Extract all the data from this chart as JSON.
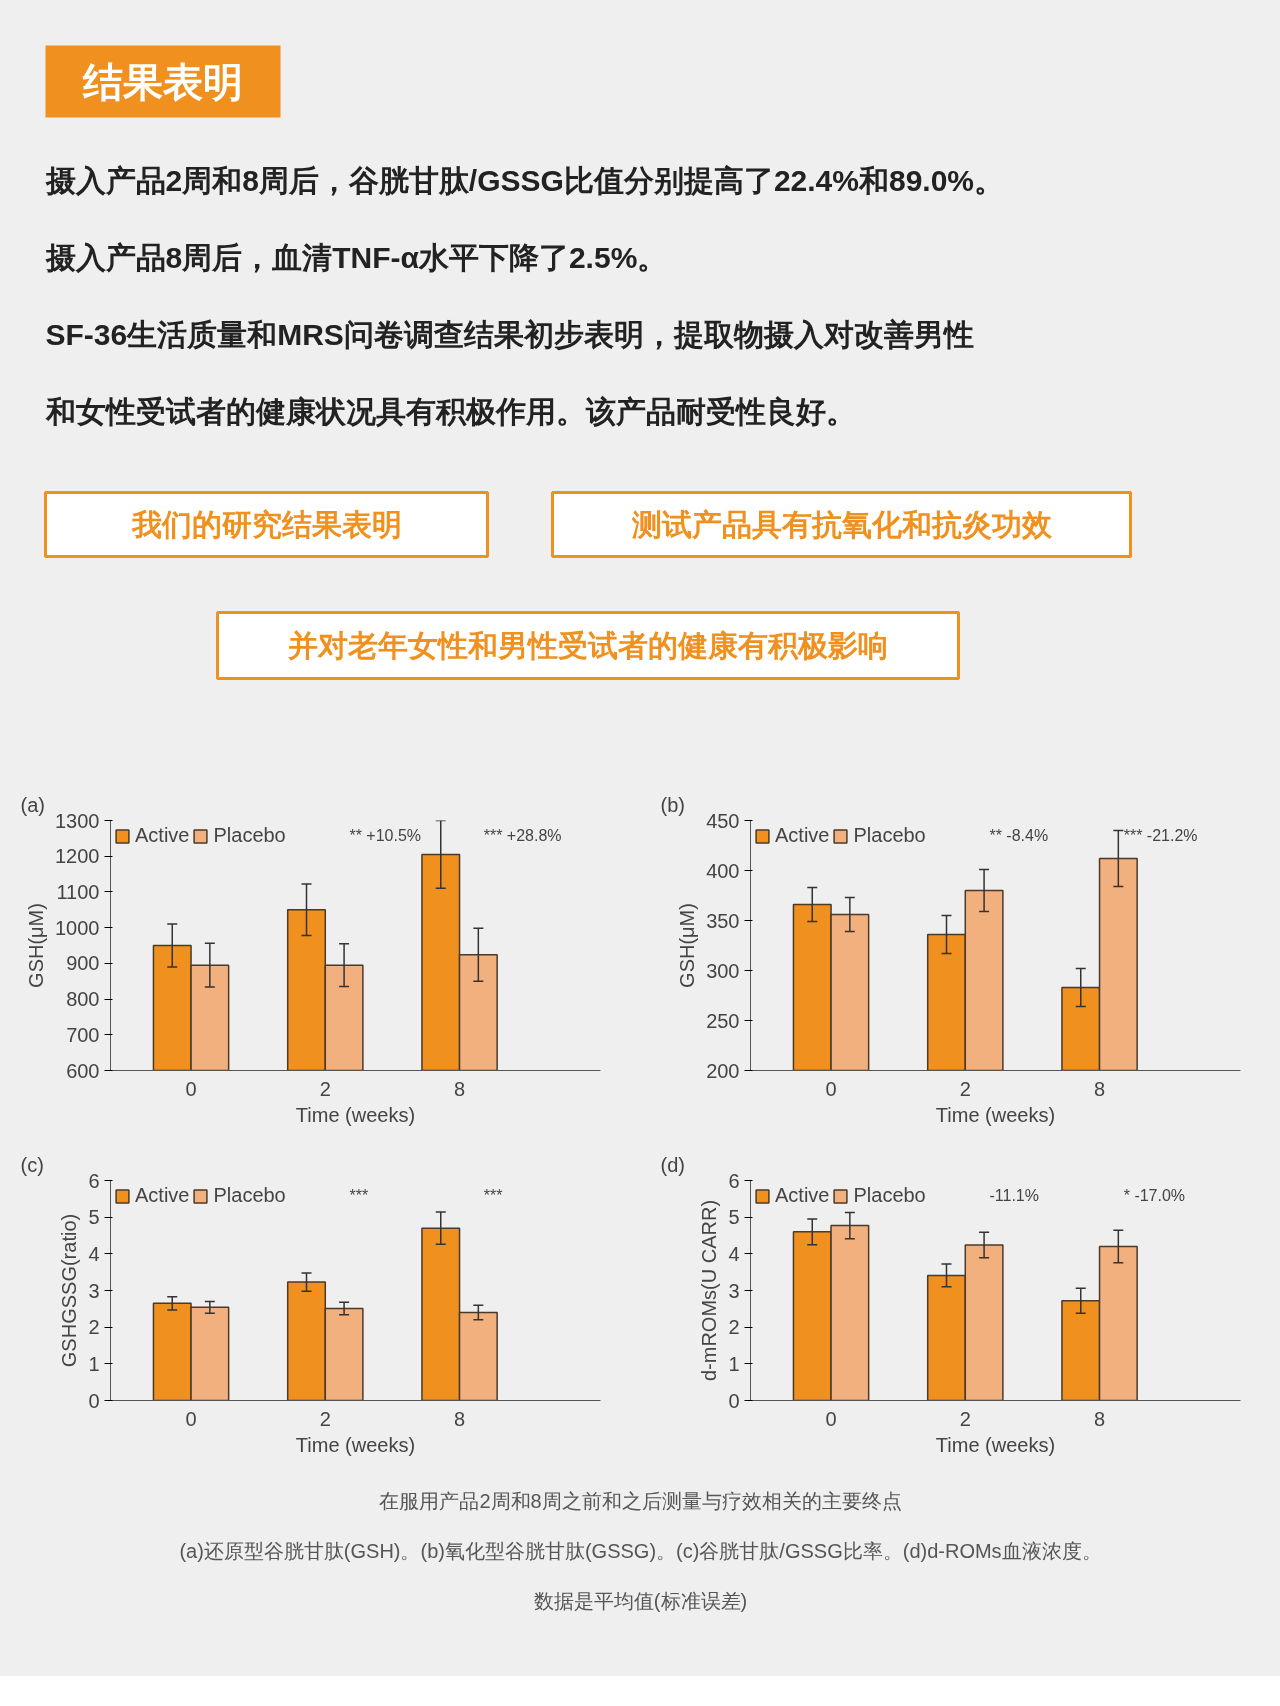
{
  "chart_data": [
    {
      "type": "other",
      "title": "结果表明",
      "annotations": [
        "摄入产品2周和8周后，谷胱甘肽/GSSG比值分别提高了22.4%和89.0%。",
        "摄入产品8周后，血清TNF-α水平下降了2.5%。",
        "SF-36生活质量和MRS问卷调查结果初步表明，提取物摄入对改善男性",
        "和女性受试者的健康状况具有积极作用。该产品耐受性良好。",
        "我们的研究结果表明",
        "测试产品具有抗氧化和抗炎功效",
        "并对老年女性和男性受试者的健康有积极影响"
      ]
    },
    {
      "type": "bar",
      "title": "(a)",
      "xlabel": "Time (weeks)",
      "ylabel": "GSH(μM)",
      "categories": [
        "0",
        "2",
        "8"
      ],
      "ylim": [
        600,
        1300
      ],
      "yticks": [
        600,
        700,
        800,
        900,
        1000,
        1100,
        1200,
        1300
      ],
      "legend": "top left",
      "series": [
        {
          "name": "Active",
          "color": "#f0901e",
          "values": [
            950,
            1050,
            1205
          ],
          "errors": [
            60,
            72,
            95
          ]
        },
        {
          "name": "Placebo",
          "color": "#f3b07f",
          "values": [
            895,
            895,
            924
          ],
          "errors": [
            61,
            60,
            74
          ]
        }
      ],
      "annotations": [
        "** +10.5%",
        "*** +28.8%"
      ]
    },
    {
      "type": "bar",
      "title": "(b)",
      "xlabel": "Time (weeks)",
      "ylabel": "GSH(μM)",
      "categories": [
        "0",
        "2",
        "8"
      ],
      "ylim": [
        200,
        450
      ],
      "yticks": [
        200,
        250,
        300,
        350,
        400,
        450
      ],
      "legend": "top left",
      "series": [
        {
          "name": "Active",
          "color": "#f0901e",
          "values": [
            366,
            336,
            283
          ],
          "errors": [
            17,
            19,
            19
          ]
        },
        {
          "name": "Placebo",
          "color": "#f3b07f",
          "values": [
            356,
            380,
            412
          ],
          "errors": [
            17,
            21,
            28
          ]
        }
      ],
      "annotations": [
        "** -8.4%",
        "*** -21.2%"
      ]
    },
    {
      "type": "bar",
      "title": "(c)",
      "xlabel": "Time (weeks)",
      "ylabel": "GSHGSSG(ratio)",
      "categories": [
        "0",
        "2",
        "8"
      ],
      "ylim": [
        0,
        6
      ],
      "yticks": [
        0,
        1,
        2,
        3,
        4,
        5,
        6
      ],
      "legend": "top left",
      "series": [
        {
          "name": "Active",
          "color": "#f0901e",
          "values": [
            2.65,
            3.23,
            4.7
          ],
          "errors": [
            0.18,
            0.25,
            0.44
          ]
        },
        {
          "name": "Placebo",
          "color": "#f3b07f",
          "values": [
            2.54,
            2.51,
            2.4
          ],
          "errors": [
            0.16,
            0.17,
            0.2
          ]
        }
      ],
      "annotations": [
        "***",
        "***"
      ]
    },
    {
      "type": "bar",
      "title": "(d)",
      "xlabel": "Time (weeks)",
      "ylabel": "d-mROMs(U CARR)",
      "categories": [
        "0",
        "2",
        "8"
      ],
      "ylim": [
        0,
        6
      ],
      "yticks": [
        0,
        1,
        2,
        3,
        4,
        5,
        6
      ],
      "legend": "top left",
      "series": [
        {
          "name": "Active",
          "color": "#f0901e",
          "values": [
            4.6,
            3.41,
            2.72
          ],
          "errors": [
            0.35,
            0.31,
            0.34
          ]
        },
        {
          "name": "Placebo",
          "color": "#f3b07f",
          "values": [
            4.77,
            4.24,
            4.2
          ],
          "errors": [
            0.36,
            0.35,
            0.44
          ]
        }
      ],
      "annotations": [
        "-11.1%",
        "* -17.0%"
      ]
    },
    {
      "type": "other",
      "annotations": [
        "在服用产品2周和8周之前和之后测量与疗效相关的主要终点",
        "(a)还原型谷胱甘肽(GSH)。(b)氧化型谷胱甘肽(GSSG)。(c)谷胱甘肽/GSSG比率。(d)d-ROMs血液浓度。",
        "数据是平均值(标准误差)"
      ]
    }
  ]
}
